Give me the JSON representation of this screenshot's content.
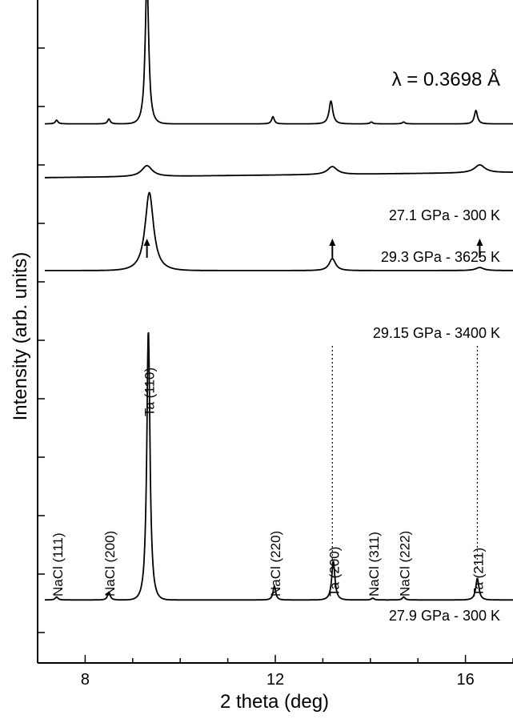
{
  "chart_data": {
    "type": "line",
    "xlabel": "2 theta (deg)",
    "ylabel": "Intensity (arb. units)",
    "xlim": [
      7.0,
      17.0
    ],
    "x_ticks": [
      8,
      12,
      16
    ],
    "x_tick_labels": [
      "8",
      "12",
      "16"
    ],
    "y_tick_count": 11,
    "wavelength_label": "λ = 0.3698 Å",
    "series": [
      {
        "name": "27.1 GPa - 300 K",
        "baseline": 8.0,
        "peaks": [
          {
            "x": 7.4,
            "h": 0.06,
            "w": 0.05
          },
          {
            "x": 8.5,
            "h": 0.08,
            "w": 0.05
          },
          {
            "x": 9.3,
            "h": 2.47,
            "w": 0.065
          },
          {
            "x": 11.95,
            "h": 0.12,
            "w": 0.05
          },
          {
            "x": 13.17,
            "h": 0.38,
            "w": 0.07
          },
          {
            "x": 14.02,
            "h": 0.03,
            "w": 0.05
          },
          {
            "x": 14.7,
            "h": 0.03,
            "w": 0.05
          },
          {
            "x": 16.22,
            "h": 0.22,
            "w": 0.06
          }
        ]
      },
      {
        "name": "29.3 GPa - 3625 K",
        "baseline": 7.1,
        "drift": 0.03,
        "peaks": [
          {
            "x": 9.3,
            "h": 0.18,
            "w": 0.2
          },
          {
            "x": 13.2,
            "h": 0.13,
            "w": 0.18
          },
          {
            "x": 16.3,
            "h": 0.13,
            "w": 0.2
          }
        ]
      },
      {
        "name": "29.15 GPa - 3400 K",
        "baseline": 5.55,
        "peaks": [
          {
            "x": 9.35,
            "h": 1.3,
            "w": 0.16
          },
          {
            "x": 13.2,
            "h": 0.2,
            "w": 0.12
          },
          {
            "x": 16.3,
            "h": 0.05,
            "w": 0.15
          }
        ]
      },
      {
        "name": "27.9 GPa - 300 K",
        "baseline": 0.05,
        "peaks": [
          {
            "x": 7.4,
            "h": 0.05,
            "w": 0.05
          },
          {
            "x": 8.5,
            "h": 0.13,
            "w": 0.05
          },
          {
            "x": 9.33,
            "h": 4.5,
            "w": 0.06
          },
          {
            "x": 11.98,
            "h": 0.23,
            "w": 0.05
          },
          {
            "x": 13.22,
            "h": 0.65,
            "w": 0.06
          },
          {
            "x": 14.05,
            "h": 0.03,
            "w": 0.05
          },
          {
            "x": 14.7,
            "h": 0.05,
            "w": 0.05
          },
          {
            "x": 16.25,
            "h": 0.36,
            "w": 0.06
          }
        ]
      }
    ],
    "peak_labels": [
      {
        "text": "NaCl (111)",
        "x": 7.4
      },
      {
        "text": "NaCl (200)",
        "x": 8.5
      },
      {
        "text": "Ta (110)",
        "x": 9.33
      },
      {
        "text": "NaCl (220)",
        "x": 11.98
      },
      {
        "text": "Ta (200)",
        "x": 13.22
      },
      {
        "text": "NaCl (311)",
        "x": 14.05
      },
      {
        "text": "NaCl (222)",
        "x": 14.7
      },
      {
        "text": "Ta (211)",
        "x": 16.25
      }
    ],
    "arrows_x": [
      9.3,
      13.2,
      16.3
    ],
    "dotted_lines_x": [
      13.2,
      16.25
    ]
  }
}
